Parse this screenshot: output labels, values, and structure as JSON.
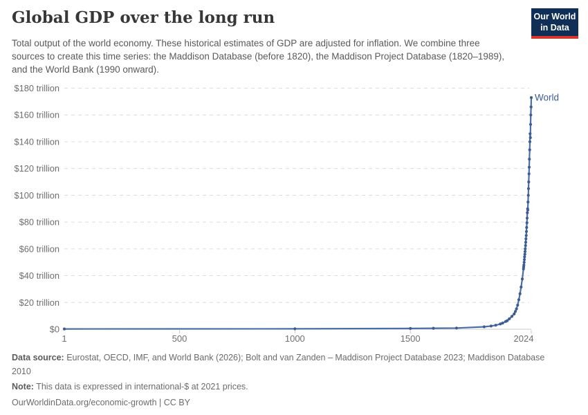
{
  "header": {
    "title": "Global GDP over the long run",
    "subtitle": "Total output of the world economy. These historical estimates of GDP are adjusted for inflation. We combine three sources to create this time series: the Maddison Database (before 1820), the Maddison Project Database (1820–1989), and the World Bank (1990 onward).",
    "logo": {
      "line1": "Our World",
      "line2": "in Data",
      "background_color": "#102f57",
      "bar_color": "#d8362d"
    }
  },
  "chart_data": {
    "type": "line",
    "title": "Global GDP over the long run",
    "unit": "trillion international-$ at 2021 prices",
    "xlim": [
      1,
      2024
    ],
    "ylim": [
      0,
      180
    ],
    "grid": "horizontal-dashed",
    "legend_position": "end-of-line",
    "x_ticks": [
      {
        "v": 1,
        "label": "1"
      },
      {
        "v": 500,
        "label": "500"
      },
      {
        "v": 1000,
        "label": "1000"
      },
      {
        "v": 1500,
        "label": "1500"
      },
      {
        "v": 2024,
        "label": "2024"
      }
    ],
    "y_ticks": [
      {
        "v": 0,
        "label": "$0"
      },
      {
        "v": 20,
        "label": "$20 trillion"
      },
      {
        "v": 40,
        "label": "$40 trillion"
      },
      {
        "v": 60,
        "label": "$60 trillion"
      },
      {
        "v": 80,
        "label": "$80 trillion"
      },
      {
        "v": 100,
        "label": "$100 trillion"
      },
      {
        "v": 120,
        "label": "$120 trillion"
      },
      {
        "v": 140,
        "label": "$140 trillion"
      },
      {
        "v": 160,
        "label": "$160 trillion"
      },
      {
        "v": 180,
        "label": "$180 trillion"
      }
    ],
    "series": [
      {
        "name": "World",
        "line_color": "#4c6ea6",
        "marker_color": "#3d5c94",
        "label_color": "#3d5c94",
        "points": [
          [
            1,
            0.23
          ],
          [
            1000,
            0.33
          ],
          [
            1500,
            0.58
          ],
          [
            1600,
            0.73
          ],
          [
            1700,
            0.9
          ],
          [
            1820,
            1.8
          ],
          [
            1850,
            2.4
          ],
          [
            1870,
            3.0
          ],
          [
            1890,
            3.9
          ],
          [
            1900,
            4.6
          ],
          [
            1913,
            5.8
          ],
          [
            1920,
            6.4
          ],
          [
            1929,
            7.8
          ],
          [
            1940,
            9.6
          ],
          [
            1950,
            11.4
          ],
          [
            1955,
            13.2
          ],
          [
            1960,
            15.2
          ],
          [
            1965,
            18.0
          ],
          [
            1970,
            22.0
          ],
          [
            1975,
            26.5
          ],
          [
            1980,
            31.5
          ],
          [
            1985,
            37.5
          ],
          [
            1990,
            45.0
          ],
          [
            1991,
            46.5
          ],
          [
            1992,
            48
          ],
          [
            1993,
            50
          ],
          [
            1994,
            52
          ],
          [
            1995,
            54
          ],
          [
            1996,
            56
          ],
          [
            1997,
            58
          ],
          [
            1998,
            60
          ],
          [
            1999,
            62.5
          ],
          [
            2000,
            65
          ],
          [
            2001,
            67.5
          ],
          [
            2002,
            70
          ],
          [
            2003,
            73
          ],
          [
            2004,
            76
          ],
          [
            2005,
            79.5
          ],
          [
            2006,
            83
          ],
          [
            2007,
            87
          ],
          [
            2008,
            90
          ],
          [
            2009,
            89
          ],
          [
            2010,
            95
          ],
          [
            2011,
            100
          ],
          [
            2012,
            105
          ],
          [
            2013,
            110
          ],
          [
            2014,
            116
          ],
          [
            2015,
            121
          ],
          [
            2016,
            127
          ],
          [
            2017,
            134
          ],
          [
            2018,
            140
          ],
          [
            2019,
            146
          ],
          [
            2020,
            143
          ],
          [
            2021,
            153
          ],
          [
            2022,
            160
          ],
          [
            2023,
            166
          ],
          [
            2024,
            173
          ]
        ]
      }
    ]
  },
  "footer": {
    "data_source_label": "Data source:",
    "data_source_text": " Eurostat, OECD, IMF, and World Bank (2026); Bolt and van Zanden – Maddison Project Database 2023; Maddison Database 2010",
    "note_label": "Note:",
    "note_text": " This data is expressed in international-$ at 2021 prices.",
    "link": "OurWorldinData.org/economic-growth | CC BY"
  }
}
